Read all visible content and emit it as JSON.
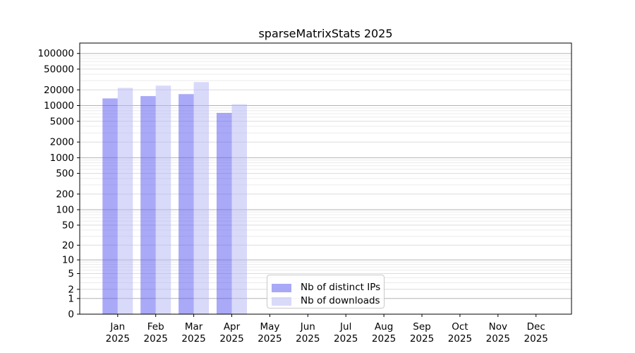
{
  "figure": {
    "title": "sparseMatrixStats 2025"
  },
  "chart_data": {
    "type": "bar",
    "title": "sparseMatrixStats 2025",
    "categories": [
      "Jan",
      "Feb",
      "Mar",
      "Apr",
      "May",
      "Jun",
      "Jul",
      "Aug",
      "Sep",
      "Oct",
      "Nov",
      "Dec"
    ],
    "x_year_label": "2025",
    "series": [
      {
        "name": "Nb of distinct IPs",
        "color": "#5353ef",
        "values": [
          13700,
          15200,
          16600,
          7250,
          null,
          null,
          null,
          null,
          null,
          null,
          null,
          null
        ]
      },
      {
        "name": "Nb of downloads",
        "color": "#b3b3f5",
        "values": [
          21800,
          24100,
          28200,
          10600,
          null,
          null,
          null,
          null,
          null,
          null,
          null,
          null
        ]
      }
    ],
    "bar_opacity": 0.5,
    "y_scale": "log1p",
    "y_ticks": [
      0,
      1,
      2,
      5,
      10,
      20,
      50,
      100,
      200,
      500,
      1000,
      2000,
      5000,
      10000,
      20000,
      50000,
      100000
    ],
    "y_axis_max": 158000,
    "xlabel": "",
    "ylabel": "",
    "grid": {
      "horizontal": true,
      "decade_color": "#b3b3b3",
      "labeled_tick_color": "#dcdcdc",
      "minor_color": "#ececec"
    },
    "legend": {
      "position": "inside-bottom-center"
    }
  }
}
